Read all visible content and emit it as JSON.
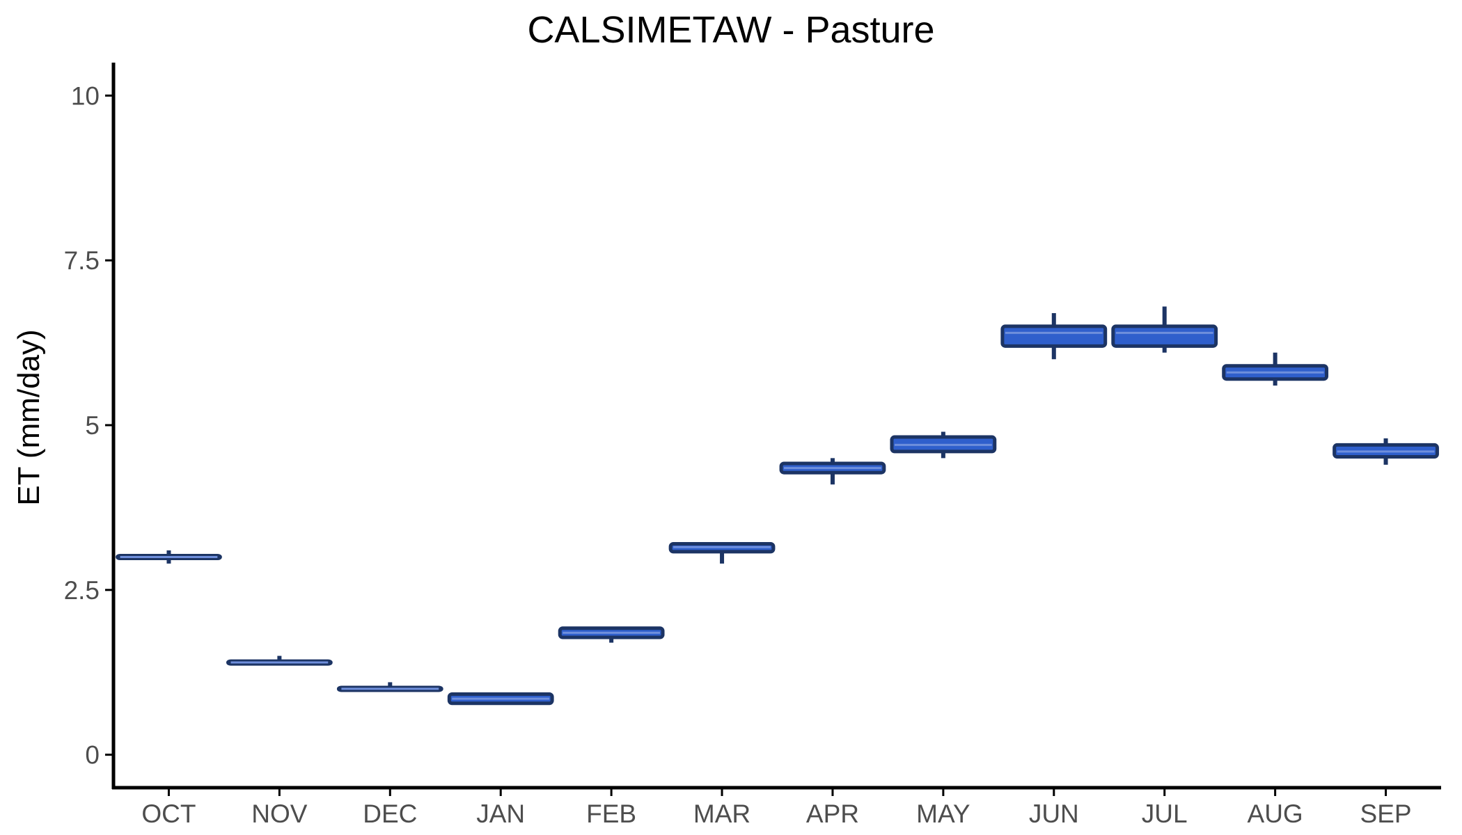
{
  "chart_data": {
    "type": "box",
    "title": "CALSIMETAW - Pasture",
    "xlabel": "",
    "ylabel": "ET (mm/day)",
    "ylim": [
      -0.5,
      10.5
    ],
    "yticks": [
      0,
      2.5,
      5,
      7.5,
      10
    ],
    "ytick_labels": [
      "0",
      "2.5",
      "5",
      "7.5",
      "10"
    ],
    "grid": false,
    "legend": "none",
    "categories": [
      "OCT",
      "NOV",
      "DEC",
      "JAN",
      "FEB",
      "MAR",
      "APR",
      "MAY",
      "JUN",
      "JUL",
      "AUG",
      "SEP"
    ],
    "series": [
      {
        "boxes": [
          {
            "category": "OCT",
            "min": 2.9,
            "q1": 2.98,
            "median": 3.0,
            "q3": 3.02,
            "max": 3.1
          },
          {
            "category": "NOV",
            "min": 1.38,
            "q1": 1.39,
            "median": 1.4,
            "q3": 1.42,
            "max": 1.5
          },
          {
            "category": "DEC",
            "min": 0.98,
            "q1": 0.99,
            "median": 1.0,
            "q3": 1.02,
            "max": 1.1
          },
          {
            "category": "JAN",
            "min": 0.78,
            "q1": 0.78,
            "median": 0.85,
            "q3": 0.92,
            "max": 0.92
          },
          {
            "category": "FEB",
            "min": 1.7,
            "q1": 1.78,
            "median": 1.85,
            "q3": 1.92,
            "max": 1.93
          },
          {
            "category": "MAR",
            "min": 2.9,
            "q1": 3.08,
            "median": 3.15,
            "q3": 3.2,
            "max": 3.22
          },
          {
            "category": "APR",
            "min": 4.1,
            "q1": 4.28,
            "median": 4.35,
            "q3": 4.42,
            "max": 4.5
          },
          {
            "category": "MAY",
            "min": 4.5,
            "q1": 4.6,
            "median": 4.7,
            "q3": 4.82,
            "max": 4.9
          },
          {
            "category": "JUN",
            "min": 6.0,
            "q1": 6.2,
            "median": 6.4,
            "q3": 6.5,
            "max": 6.7
          },
          {
            "category": "JUL",
            "min": 6.1,
            "q1": 6.2,
            "median": 6.4,
            "q3": 6.5,
            "max": 6.8
          },
          {
            "category": "AUG",
            "min": 5.6,
            "q1": 5.7,
            "median": 5.8,
            "q3": 5.9,
            "max": 6.1
          },
          {
            "category": "SEP",
            "min": 4.4,
            "q1": 4.52,
            "median": 4.6,
            "q3": 4.7,
            "max": 4.8
          }
        ]
      }
    ]
  },
  "colors": {
    "box_fill": "#2f5fcc",
    "box_outline": "#1c3464",
    "median_line": "#6f8fdc",
    "axis": "#000000",
    "tick_text": "#4d4d4d"
  }
}
